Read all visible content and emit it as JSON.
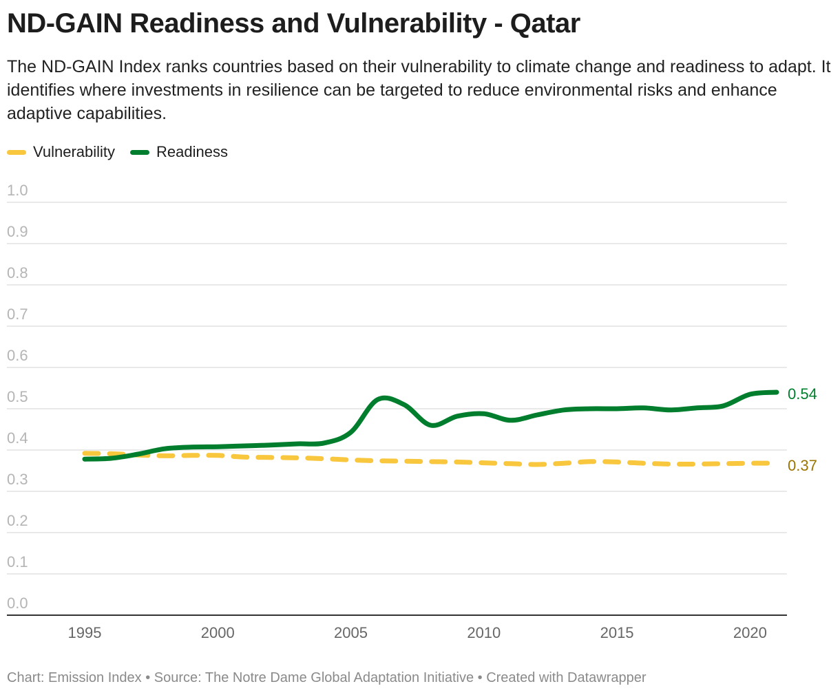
{
  "header": {
    "title": "ND-GAIN Readiness and Vulnerability - Qatar",
    "subtitle": "The ND-GAIN Index ranks countries based on their vulnerability to climate change and readiness to adapt. It identifies where investments in resilience can be targeted to reduce environmental risks and enhance adaptive capabilities."
  },
  "footer": "Chart: Emission Index • Source: The Notre Dame Global Adaptation Initiative • Created with Datawrapper",
  "chart_data": {
    "type": "line",
    "title": "ND-GAIN Readiness and Vulnerability - Qatar",
    "xlabel": "",
    "ylabel": "",
    "xlim": [
      1995,
      2021
    ],
    "ylim": [
      0,
      1
    ],
    "grid": true,
    "legend_placement": "top-left",
    "x_ticks": [
      1995,
      2000,
      2005,
      2010,
      2015,
      2020
    ],
    "y_ticks": [
      "0.0",
      "0.1",
      "0.2",
      "0.3",
      "0.4",
      "0.5",
      "0.6",
      "0.7",
      "0.8",
      "0.9",
      "1.0"
    ],
    "x": [
      1995,
      1996,
      1997,
      1998,
      1999,
      2000,
      2001,
      2002,
      2003,
      2004,
      2005,
      2006,
      2007,
      2008,
      2009,
      2010,
      2011,
      2012,
      2013,
      2014,
      2015,
      2016,
      2017,
      2018,
      2019,
      2020,
      2021
    ],
    "series": [
      {
        "name": "Vulnerability",
        "color": "#f8c73e",
        "style": "dashed",
        "end_label": "0.37",
        "end_label_color": "#9a7400",
        "values": [
          0.392,
          0.391,
          0.388,
          0.386,
          0.387,
          0.387,
          0.383,
          0.382,
          0.381,
          0.379,
          0.376,
          0.374,
          0.373,
          0.372,
          0.371,
          0.369,
          0.367,
          0.365,
          0.368,
          0.372,
          0.371,
          0.368,
          0.366,
          0.366,
          0.367,
          0.368,
          0.368
        ]
      },
      {
        "name": "Readiness",
        "color": "#007e2d",
        "style": "solid",
        "end_label": "0.54",
        "end_label_color": "#007e2d",
        "values": [
          0.378,
          0.38,
          0.39,
          0.403,
          0.407,
          0.408,
          0.41,
          0.412,
          0.415,
          0.417,
          0.443,
          0.522,
          0.51,
          0.46,
          0.482,
          0.488,
          0.472,
          0.485,
          0.497,
          0.5,
          0.5,
          0.502,
          0.497,
          0.502,
          0.507,
          0.535,
          0.54
        ]
      }
    ]
  }
}
